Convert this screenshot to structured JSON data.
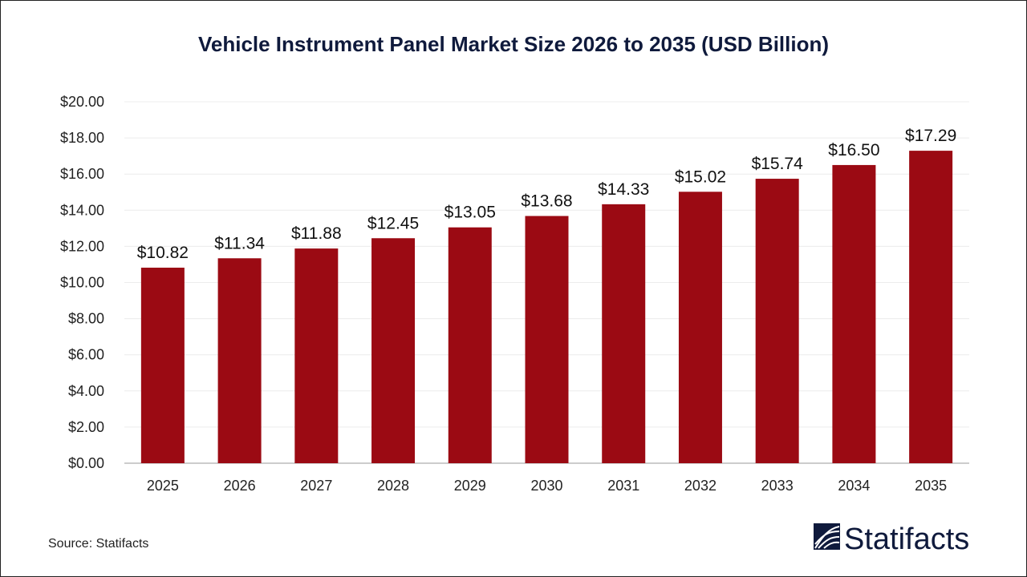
{
  "chart_data": {
    "type": "bar",
    "title": "Vehicle Instrument Panel Market Size 2026 to 2035 (USD Billion)",
    "categories": [
      "2025",
      "2026",
      "2027",
      "2028",
      "2029",
      "2030",
      "2031",
      "2032",
      "2033",
      "2034",
      "2035"
    ],
    "values": [
      10.82,
      11.34,
      11.88,
      12.45,
      13.05,
      13.68,
      14.33,
      15.02,
      15.74,
      16.5,
      17.29
    ],
    "data_labels": [
      "$10.82",
      "$11.34",
      "$11.88",
      "$12.45",
      "$13.05",
      "$13.68",
      "$14.33",
      "$15.02",
      "$15.74",
      "$16.50",
      "$17.29"
    ],
    "y_ticks": [
      "$0.00",
      "$2.00",
      "$4.00",
      "$6.00",
      "$8.00",
      "$10.00",
      "$12.00",
      "$14.00",
      "$16.00",
      "$18.00",
      "$20.00"
    ],
    "xlabel": "",
    "ylabel": "",
    "ylim": [
      0,
      20
    ],
    "grid": true,
    "bar_color": "#9b0a13",
    "title_color": "#0f1a3c"
  },
  "footer": {
    "source": "Source: Statifacts",
    "logo_text": "Statifacts"
  }
}
